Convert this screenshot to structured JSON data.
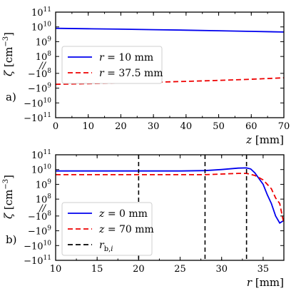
{
  "chart_data": [
    {
      "panel_label": "a)",
      "type": "line",
      "xlabel_var": "z",
      "xlabel_unit": "[mm]",
      "ylabel_var": "ζ",
      "ylabel_unit": "[cm",
      "ylabel_exp": "−3",
      "ylabel_close": "]",
      "xlim": [
        0,
        70
      ],
      "x_ticks": [
        0,
        10,
        20,
        30,
        40,
        50,
        60,
        70
      ],
      "y_scale": "symlog-broken",
      "y_ticks_pos": [
        {
          "base": "10",
          "exp": "11",
          "e": 11
        },
        {
          "base": "10",
          "exp": "10",
          "e": 10
        },
        {
          "base": "10",
          "exp": "9",
          "e": 9
        },
        {
          "base": "10",
          "exp": "8",
          "e": 8
        }
      ],
      "y_ticks_neg": [
        {
          "base": "−10",
          "exp": "8",
          "e": 8
        },
        {
          "base": "−10",
          "exp": "9",
          "e": 9
        },
        {
          "base": "−10",
          "exp": "10",
          "e": 10
        },
        {
          "base": "−10",
          "exp": "11",
          "e": 11
        }
      ],
      "break_mark": "//",
      "legend_position": "center-left",
      "series": [
        {
          "label_var": "r",
          "label_text": " = 10 mm",
          "color": "#0000ee",
          "dash": "solid",
          "x": [
            0,
            10,
            20,
            30,
            40,
            50,
            60,
            70
          ],
          "y": [
            8000000000.0,
            7500000000.0,
            7000000000.0,
            6500000000.0,
            6000000000.0,
            5500000000.0,
            5000000000.0,
            4500000000.0
          ]
        },
        {
          "label_var": "r",
          "label_text": " = 37.5 mm",
          "color": "#ee0000",
          "dash": "dashed",
          "x": [
            0,
            10,
            20,
            30,
            40,
            50,
            60,
            70
          ],
          "y": [
            -550000000.0,
            -500000000.0,
            -450000000.0,
            -400000000.0,
            -350000000.0,
            -300000000.0,
            -250000000.0,
            -200000000.0
          ]
        }
      ]
    },
    {
      "panel_label": "b)",
      "type": "line",
      "xlabel_var": "r",
      "xlabel_unit": "[mm]",
      "ylabel_var": "ζ",
      "ylabel_unit": "[cm",
      "ylabel_exp": "−3",
      "ylabel_close": "]",
      "xlim": [
        10,
        37.5
      ],
      "x_ticks": [
        10,
        15,
        20,
        25,
        30,
        35
      ],
      "y_scale": "symlog-broken",
      "y_ticks_pos": [
        {
          "base": "10",
          "exp": "11",
          "e": 11
        },
        {
          "base": "10",
          "exp": "10",
          "e": 10
        },
        {
          "base": "10",
          "exp": "9",
          "e": 9
        },
        {
          "base": "10",
          "exp": "8",
          "e": 8
        }
      ],
      "y_ticks_neg": [
        {
          "base": "−10",
          "exp": "8",
          "e": 8
        },
        {
          "base": "−10",
          "exp": "9",
          "e": 9
        },
        {
          "base": "−10",
          "exp": "10",
          "e": 10
        },
        {
          "base": "−10",
          "exp": "11",
          "e": 11
        }
      ],
      "break_mark": "//",
      "legend_position": "lower-left",
      "series": [
        {
          "label_var": "z",
          "label_text": " = 0 mm",
          "color": "#0000ee",
          "dash": "solid",
          "x": [
            10,
            15,
            20,
            25,
            28,
            30,
            32,
            33,
            33.5,
            34,
            35,
            35.5,
            36,
            36.5,
            37,
            37.5
          ],
          "y": [
            8000000000.0,
            8000000000.0,
            8000000000.0,
            8000000000.0,
            8500000000.0,
            10000000000.0,
            12500000000.0,
            13000000000.0,
            11000000000.0,
            6000000000.0,
            1000000000.0,
            200000000.0,
            50000000.0,
            -100000000.0,
            -300000000.0,
            -200000000.0
          ]
        },
        {
          "label_var": "z",
          "label_text": " = 70 mm",
          "color": "#ee0000",
          "dash": "dashed",
          "x": [
            10,
            15,
            20,
            25,
            28,
            30,
            32,
            33,
            34,
            35,
            36,
            36.5,
            37,
            37.3,
            37.5
          ],
          "y": [
            4500000000.0,
            4500000000.0,
            4500000000.0,
            4500000000.0,
            4500000000.0,
            5000000000.0,
            5500000000.0,
            5500000000.0,
            4000000000.0,
            2000000000.0,
            500000000.0,
            120000000.0,
            50000000.0,
            -100000000.0,
            -300000000.0
          ]
        },
        {
          "label_var": "r",
          "label_sub": "b,",
          "label_sub_i": "i",
          "color": "#000000",
          "dash": "dashed",
          "vlines": [
            20,
            28,
            33
          ]
        }
      ]
    }
  ]
}
